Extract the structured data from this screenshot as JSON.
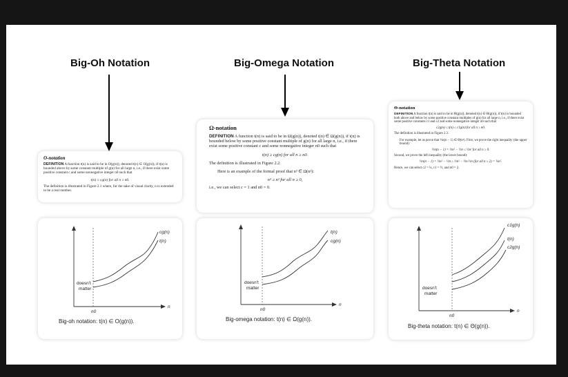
{
  "columns": [
    {
      "heading": "Big-Oh Notation",
      "def_title": "O-notation",
      "def_word": "DEFINITION",
      "def_text": "A function t(n) is said to be in O(g(n)), denoted t(n) ∈ O(g(n)), if t(n) is bounded above by some constant multiple of g(n) for all large n, i.e., if there exist some positive constant c and some nonnegative integer n0 such that",
      "formula": "t(n) ≤ cg(n)   for all n ≥ n0.",
      "after": "The definition is illustrated in Figure 2.1 where, for the sake of visual clarity, n is extended to be a real number.",
      "graph": {
        "upper_label": "cg(n)",
        "lower_label": "t(n)",
        "region_label_1": "doesn't",
        "region_label_2": "matter",
        "x_tick": "n0",
        "axis_label": "n"
      },
      "caption": "Big-oh notation: t(n) ∈ O(g(n))."
    },
    {
      "heading": "Big-Omega Notation",
      "def_title": "Ω-notation",
      "def_word": "DEFINITION",
      "def_text": "A function t(n) is said to be in Ω(g(n)), denoted t(n) ∈ Ω(g(n)), if t(n) is bounded below by some positive constant multiple of g(n) for all large n, i.e., if there exist some positive constant c and some nonnegative integer n0 such that",
      "formula": "t(n) ≥ cg(n)   for all n ≥ n0.",
      "after": "The definition is illustrated in Figure 2.2.",
      "example": "Here is an example of the formal proof that n³ ∈ Ω(n²):",
      "example_formula": "n³ ≥ n²   for all n ≥ 0,",
      "example_end": "i.e., we can select c = 1 and n0 = 0.",
      "graph": {
        "upper_label": "t(n)",
        "lower_label": "cg(n)",
        "region_label_1": "doesn't",
        "region_label_2": "matter",
        "x_tick": "n0",
        "axis_label": "n"
      },
      "caption": "Big-omega notation: t(n) ∈ Ω(g(n))."
    },
    {
      "heading": "Big-Theta Notation",
      "def_title": "Θ-notation",
      "def_word": "DEFINITION",
      "def_text": "A function t(n) is said to be in Θ(g(n)), denoted t(n) ∈ Θ(g(n)), if t(n) is bounded both above and below by some positive constant multiples of g(n) for all large n, i.e., if there exist some positive constants c1 and c2 and some nonnegative integer n0 such that",
      "formula": "c2g(n) ≤ t(n) ≤ c1g(n)   for all n ≥ n0.",
      "after": "The definition is illustrated in Figure 2.3.",
      "example": "For example, let us prove that ½n(n − 1) ∈ Θ(n²). First, we prove the right inequality (the upper bound):",
      "example_formula": "½n(n − 1) = ½n² − ½n ≤ ½n²   for all n ≥ 0.",
      "example_2": "Second, we prove the left inequality (the lower bound):",
      "example_formula_2": "½n(n − 1) = ½n² − ½n ≥ ½n² − ½n·½n (for all n ≥ 2) = ¼n².",
      "example_end": "Hence, we can select c2 = ¼, c1 = ½, and n0 = 2.",
      "graph": {
        "upper_label": "c1g(n)",
        "middle_label": "t(n)",
        "lower_label": "c2g(n)",
        "region_label_1": "doesn't",
        "region_label_2": "matter",
        "x_tick": "n0",
        "axis_label": "n"
      },
      "caption": "Big-theta notation: t(n) ∈ Θ(g(n))."
    }
  ]
}
